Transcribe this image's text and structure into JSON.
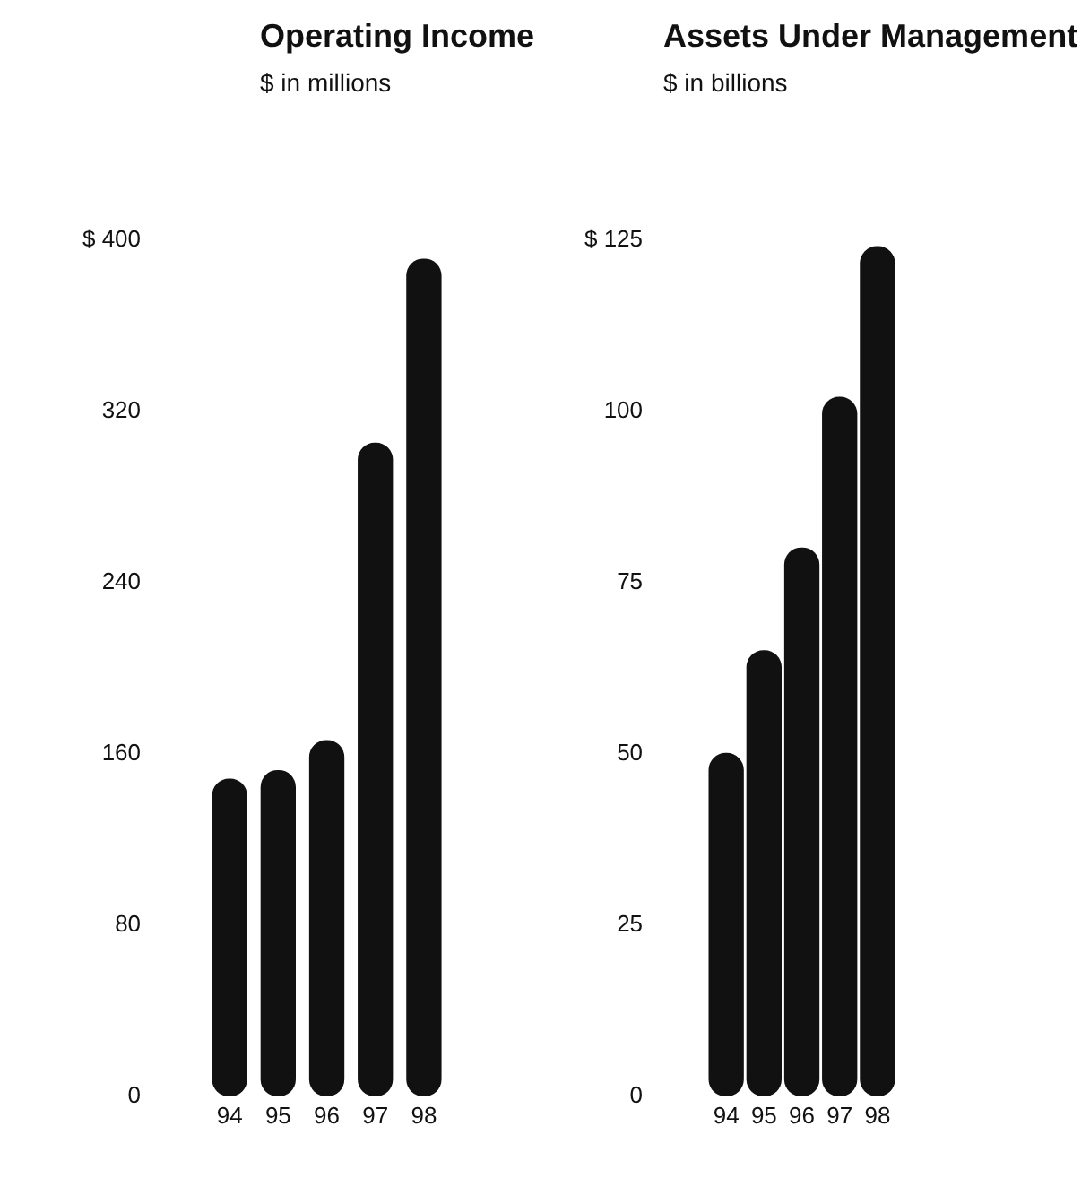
{
  "chart_data": [
    {
      "type": "bar",
      "title": "Operating Income",
      "subtitle": "$ in millions",
      "categories": [
        "94",
        "95",
        "96",
        "97",
        "98"
      ],
      "values": [
        148,
        152,
        166,
        305,
        391
      ],
      "color": "#111111",
      "ylim": [
        0,
        400
      ],
      "yticks": [
        0,
        80,
        160,
        240,
        {
          "value": 400,
          "label": "$ 400"
        },
        320
      ],
      "grid": false
    },
    {
      "type": "bar",
      "title": "Assets Under Management",
      "subtitle": "$ in billions",
      "categories": [
        "94",
        "95",
        "96",
        "97",
        "98"
      ],
      "values": [
        50,
        65,
        80,
        102,
        124
      ],
      "color": "#111111",
      "ylim": [
        0,
        125
      ],
      "yticks": [
        0,
        25,
        50,
        75,
        100,
        {
          "value": 125,
          "label": "$ 125"
        }
      ],
      "grid": false
    }
  ]
}
